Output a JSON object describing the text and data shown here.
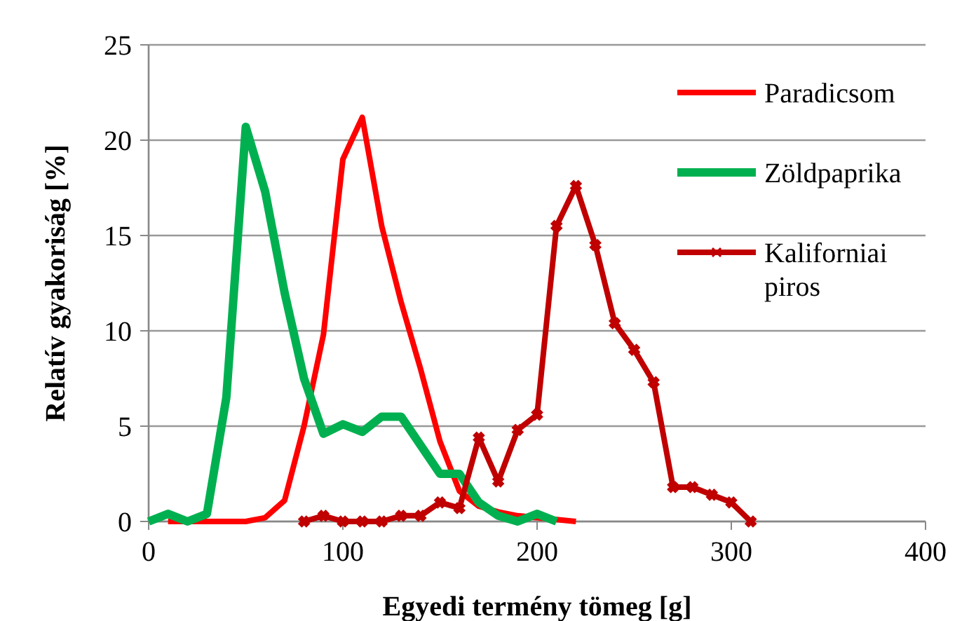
{
  "chart_data": {
    "type": "line",
    "xlabel": "Egyedi termény tömeg [g]",
    "ylabel": "Relatív gyakoriság [%]",
    "xlim": [
      0,
      400
    ],
    "xticks": [
      0,
      100,
      200,
      300,
      400
    ],
    "ylim": [
      0,
      25
    ],
    "yticks": [
      0,
      5,
      10,
      15,
      20,
      25
    ],
    "grid": "y",
    "legend": "top right",
    "series": [
      {
        "name": "Paradicsom",
        "color": "#ff0000",
        "marker": "none",
        "x": [
          10,
          20,
          30,
          40,
          50,
          60,
          70,
          80,
          90,
          100,
          110,
          120,
          130,
          140,
          150,
          160,
          170,
          180,
          190,
          200,
          210,
          220
        ],
        "values": [
          0,
          0,
          0,
          0,
          0,
          0.2,
          1.1,
          5,
          9.8,
          19,
          21.2,
          15.5,
          11.5,
          8,
          4.2,
          1.6,
          0.8,
          0.5,
          0.3,
          0.2,
          0.1,
          0
        ]
      },
      {
        "name": "Zöldpaprika",
        "color": "#00b050",
        "marker": "none",
        "x": [
          0,
          10,
          20,
          30,
          40,
          50,
          60,
          70,
          80,
          90,
          100,
          110,
          120,
          130,
          140,
          150,
          160,
          170,
          180,
          190,
          200,
          210
        ],
        "values": [
          0,
          0.4,
          0,
          0.4,
          6.5,
          20.7,
          17.3,
          12,
          7.5,
          4.6,
          5.1,
          4.7,
          5.5,
          5.5,
          4,
          2.5,
          2.5,
          1,
          0.3,
          0,
          0.4,
          0
        ]
      },
      {
        "name": "Kaliforniai piros",
        "color": "#c00000",
        "marker": "cross",
        "x": [
          80,
          90,
          100,
          110,
          120,
          130,
          140,
          150,
          160,
          170,
          180,
          190,
          200,
          210,
          220,
          230,
          240,
          250,
          260,
          270,
          280,
          290,
          300,
          310
        ],
        "values": [
          0,
          0.3,
          0,
          0,
          0,
          0.3,
          0.3,
          1,
          0.7,
          4.4,
          2.1,
          4.8,
          5.6,
          15.5,
          17.6,
          14.5,
          10.4,
          9,
          7.3,
          1.8,
          1.8,
          1.4,
          1,
          0
        ]
      }
    ]
  }
}
